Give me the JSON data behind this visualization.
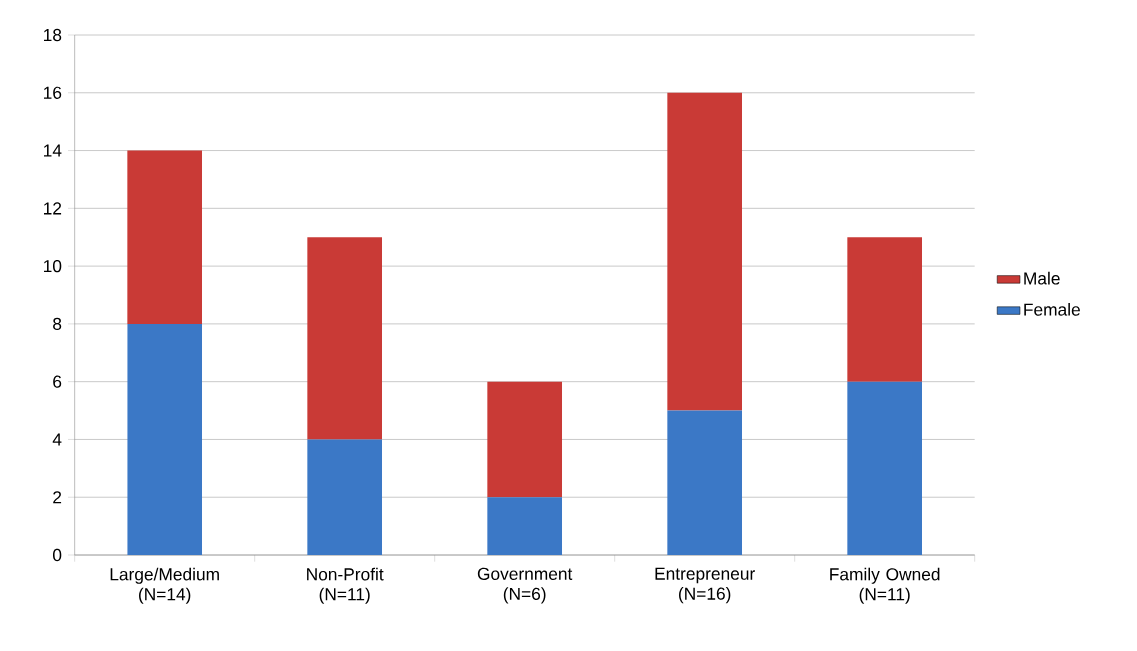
{
  "chart_data": {
    "type": "bar",
    "stacked": true,
    "categories": [
      "Large/Medium (N=14)",
      "Non-Profit (N=11)",
      "Government (N=6)",
      "Entrepreneur (N=16)",
      "Family Owned (N=11)"
    ],
    "series": [
      {
        "name": "Female",
        "color": "#3b78c6",
        "values": [
          8,
          4,
          2,
          5,
          6
        ]
      },
      {
        "name": "Male",
        "color": "#c93a36",
        "values": [
          6,
          7,
          4,
          11,
          5
        ]
      }
    ],
    "ylim": [
      0,
      18
    ],
    "yticks": [
      0,
      2,
      4,
      6,
      8,
      10,
      12,
      14,
      16,
      18
    ],
    "grid": "y",
    "legend": "right"
  }
}
